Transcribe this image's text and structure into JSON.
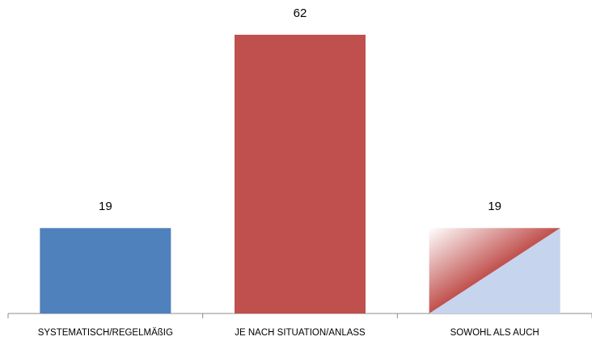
{
  "chart_data": {
    "type": "bar",
    "categories": [
      "SYSTEMATISCH/REGELMÄßIG",
      "JE NACH SITUATION/ANLASS",
      "SOWOHL ALS AUCH"
    ],
    "values": [
      19,
      62,
      19
    ],
    "colors": [
      "#4f81bd",
      "#c0504d",
      "#c6d4ee"
    ]
  }
}
